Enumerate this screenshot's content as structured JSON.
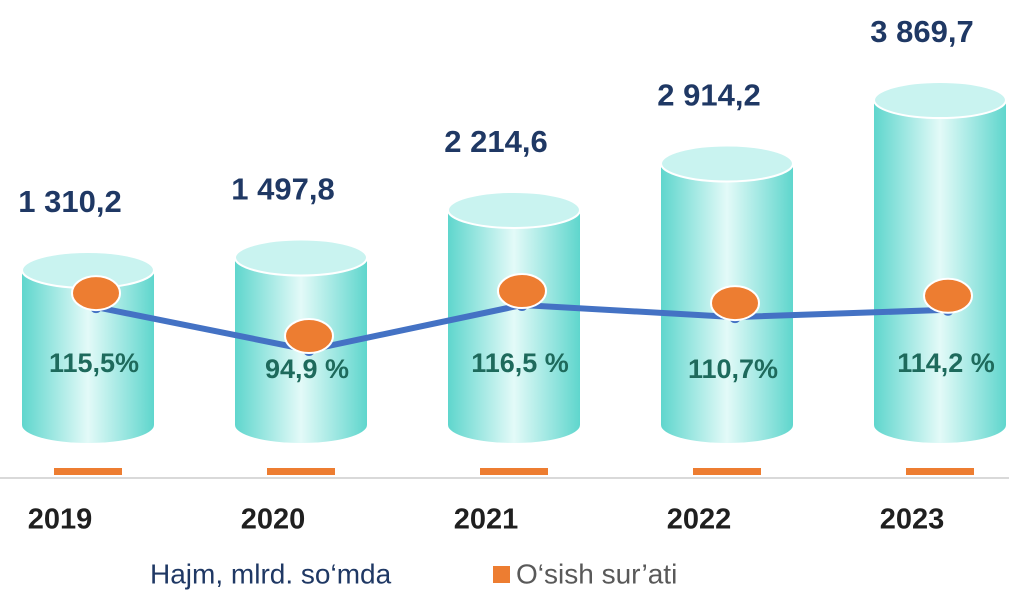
{
  "chart_data": {
    "type": "bar",
    "categories": [
      "2019",
      "2020",
      "2021",
      "2022",
      "2023"
    ],
    "series": [
      {
        "name": "Hajm, mlrd. so‘mda",
        "color": "#5fd6cd",
        "values": [
          1310.2,
          1497.8,
          2214.6,
          2914.2,
          3869.7
        ],
        "value_labels": [
          "1 310,2",
          "1 497,8",
          "2 214,6",
          "2 914,2",
          "3 869,7"
        ]
      },
      {
        "name": "O‘sish sur’ati",
        "type": "line",
        "color": "#ed7d31",
        "line_color": "#4472c4",
        "values": [
          115.5,
          94.9,
          116.5,
          110.7,
          114.2
        ],
        "value_labels": [
          "115,5%",
          "94,9 %",
          "116,5 %",
          "110,7%",
          "114,2 %"
        ]
      }
    ]
  }
}
